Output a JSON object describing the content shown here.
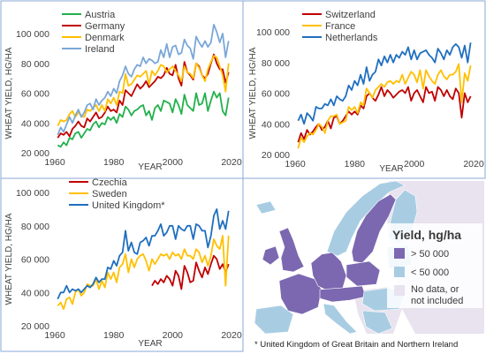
{
  "colors": {
    "Austria": "#22b14c",
    "Germany": "#c00000",
    "Denmark": "#ffc000",
    "Ireland": "#7aa7d8",
    "Switzerland": "#c00000",
    "France": "#ffc000",
    "Netherlands": "#1f6fbf",
    "Czechia": "#c00000",
    "Sweden": "#ffc000",
    "United Kingdom*": "#1f6fbf",
    "map_high": "#7b68b0",
    "map_low": "#a8cde3",
    "map_nodata": "#e8e3ee",
    "panel_border": "#8aa9d6"
  },
  "chart_data": [
    {
      "type": "line",
      "xlabel": "YEAR",
      "ylabel": "WHEAT YIELD, HG/HA",
      "xlim": [
        1960,
        2020
      ],
      "ylim": [
        20000,
        100000
      ],
      "xticks": [
        "1960",
        "1980",
        "2000",
        "2020"
      ],
      "yticks": [
        "20 000",
        "40 000",
        "60 000",
        "80 000",
        "100 000"
      ],
      "legend_position": "top-left",
      "x": [
        1961,
        1962,
        1963,
        1964,
        1965,
        1966,
        1967,
        1968,
        1969,
        1970,
        1971,
        1972,
        1973,
        1974,
        1975,
        1976,
        1977,
        1978,
        1979,
        1980,
        1981,
        1982,
        1983,
        1984,
        1985,
        1986,
        1987,
        1988,
        1989,
        1990,
        1991,
        1992,
        1993,
        1994,
        1995,
        1996,
        1997,
        1998,
        1999,
        2000,
        2001,
        2002,
        2003,
        2004,
        2005,
        2006,
        2007,
        2008,
        2009,
        2010,
        2011,
        2012,
        2013,
        2014,
        2015,
        2016,
        2017,
        2018,
        2019
      ],
      "series": [
        {
          "name": "Austria",
          "values": [
            25000,
            24000,
            27000,
            25000,
            30000,
            29000,
            33000,
            34000,
            30000,
            33000,
            36000,
            35000,
            39000,
            41000,
            37000,
            40000,
            39000,
            44000,
            42000,
            44000,
            40000,
            46000,
            44000,
            51000,
            49000,
            45000,
            48000,
            49000,
            51000,
            52000,
            45000,
            48000,
            42000,
            50000,
            52000,
            48000,
            55000,
            54000,
            53000,
            47000,
            56000,
            52000,
            46000,
            59000,
            52000,
            50000,
            48000,
            60000,
            52000,
            53000,
            60000,
            48000,
            55000,
            61000,
            57000,
            60000,
            48000,
            45000,
            57000
          ]
        },
        {
          "name": "Germany",
          "values": [
            30000,
            33000,
            32000,
            34000,
            31000,
            36000,
            38000,
            41000,
            38000,
            37000,
            43000,
            41000,
            44000,
            47000,
            43000,
            44000,
            47000,
            51000,
            48000,
            49000,
            47000,
            55000,
            52000,
            62000,
            60000,
            58000,
            62000,
            66000,
            63000,
            65000,
            68000,
            64000,
            66000,
            68000,
            71000,
            70000,
            72000,
            77000,
            73000,
            72000,
            79000,
            70000,
            65000,
            81000,
            74000,
            72000,
            69000,
            80000,
            78000,
            72000,
            70000,
            73000,
            80000,
            86000,
            80000,
            76000,
            76000,
            67000,
            74000
          ]
        },
        {
          "name": "Denmark",
          "values": [
            38000,
            42000,
            41000,
            42000,
            46000,
            48000,
            44000,
            47000,
            45000,
            44000,
            49000,
            48000,
            50000,
            52000,
            48000,
            52000,
            48000,
            56000,
            53000,
            57000,
            52000,
            61000,
            60000,
            73000,
            65000,
            66000,
            69000,
            72000,
            71000,
            73000,
            75000,
            66000,
            75000,
            72000,
            75000,
            79000,
            78000,
            74000,
            76000,
            78000,
            75000,
            72000,
            68000,
            78000,
            74000,
            73000,
            70000,
            80000,
            77000,
            72000,
            68000,
            76000,
            81000,
            85000,
            84000,
            78000,
            72000,
            61000,
            80000
          ]
        },
        {
          "name": "Ireland",
          "values": [
            32000,
            37000,
            34000,
            39000,
            44000,
            40000,
            45000,
            49000,
            44000,
            47000,
            52000,
            53000,
            49000,
            56000,
            52000,
            55000,
            57000,
            61000,
            58000,
            63000,
            60000,
            68000,
            72000,
            78000,
            73000,
            71000,
            76000,
            79000,
            78000,
            84000,
            80000,
            83000,
            82000,
            80000,
            81000,
            89000,
            84000,
            93000,
            84000,
            91000,
            92000,
            86000,
            87000,
            96000,
            92000,
            90000,
            83000,
            98000,
            94000,
            91000,
            95000,
            91000,
            94000,
            106000,
            101000,
            94000,
            100000,
            84000,
            95000
          ]
        }
      ]
    },
    {
      "type": "line",
      "xlabel": "YEAR",
      "ylabel": "WHEAT YIELD, HG/HA",
      "xlim": [
        1960,
        2020
      ],
      "ylim": [
        20000,
        100000
      ],
      "xticks": [
        "1960",
        "1980",
        "2000",
        "2020"
      ],
      "yticks": [
        "20 000",
        "40 000",
        "60 000",
        "80 000",
        "100 000"
      ],
      "legend_position": "top-left",
      "x": [
        1961,
        1962,
        1963,
        1964,
        1965,
        1966,
        1967,
        1968,
        1969,
        1970,
        1971,
        1972,
        1973,
        1974,
        1975,
        1976,
        1977,
        1978,
        1979,
        1980,
        1981,
        1982,
        1983,
        1984,
        1985,
        1986,
        1987,
        1988,
        1989,
        1990,
        1991,
        1992,
        1993,
        1994,
        1995,
        1996,
        1997,
        1998,
        1999,
        2000,
        2001,
        2002,
        2003,
        2004,
        2005,
        2006,
        2007,
        2008,
        2009,
        2010,
        2011,
        2012,
        2013,
        2014,
        2015,
        2016,
        2017,
        2018,
        2019
      ],
      "series": [
        {
          "name": "Switzerland",
          "values": [
            28000,
            34000,
            30000,
            36000,
            33000,
            35000,
            38000,
            40000,
            36000,
            38000,
            42000,
            37000,
            44000,
            45000,
            40000,
            42000,
            45000,
            48000,
            46000,
            48000,
            46000,
            52000,
            50000,
            58000,
            60000,
            57000,
            55000,
            59000,
            64000,
            58000,
            62000,
            60000,
            57000,
            59000,
            61000,
            62000,
            60000,
            64000,
            55000,
            60000,
            62000,
            58000,
            54000,
            64000,
            60000,
            61000,
            55000,
            64000,
            62000,
            58000,
            62000,
            58000,
            56000,
            63000,
            60000,
            44000,
            60000,
            54000,
            58000
          ]
        },
        {
          "name": "France",
          "values": [
            24000,
            31000,
            28000,
            32000,
            34000,
            33000,
            36000,
            40000,
            38000,
            34000,
            42000,
            45000,
            45000,
            46000,
            40000,
            41000,
            42000,
            51000,
            49000,
            51000,
            47000,
            54000,
            52000,
            63000,
            60000,
            57000,
            62000,
            64000,
            66000,
            64000,
            67000,
            68000,
            66000,
            68000,
            67000,
            72000,
            66000,
            70000,
            74000,
            72000,
            67000,
            75000,
            63000,
            75000,
            71000,
            68000,
            66000,
            72000,
            75000,
            71000,
            69000,
            72000,
            72000,
            74000,
            79000,
            54000,
            73000,
            68000,
            78000
          ]
        },
        {
          "name": "Netherlands",
          "values": [
            42000,
            46000,
            40000,
            47000,
            45000,
            42000,
            51000,
            50000,
            50000,
            53000,
            52000,
            56000,
            52000,
            58000,
            56000,
            55000,
            58000,
            65000,
            62000,
            68000,
            65000,
            72000,
            66000,
            77000,
            68000,
            72000,
            74000,
            82000,
            78000,
            84000,
            80000,
            85000,
            80000,
            85000,
            83000,
            87000,
            85000,
            90000,
            82000,
            88000,
            82000,
            86000,
            87000,
            88000,
            85000,
            83000,
            80000,
            89000,
            86000,
            82000,
            88000,
            85000,
            90000,
            92000,
            90000,
            83000,
            91000,
            80000,
            93000
          ]
        }
      ]
    },
    {
      "type": "line",
      "xlabel": "YEAR",
      "ylabel": "WHEAT YIELD, HG/HA",
      "xlim": [
        1960,
        2020
      ],
      "ylim": [
        20000,
        100000
      ],
      "xticks": [
        "1960",
        "1980",
        "2000",
        "2020"
      ],
      "yticks": [
        "20 000",
        "40 000",
        "60 000",
        "80 000",
        "100 000"
      ],
      "legend_position": "top-left",
      "x": [
        1961,
        1962,
        1963,
        1964,
        1965,
        1966,
        1967,
        1968,
        1969,
        1970,
        1971,
        1972,
        1973,
        1974,
        1975,
        1976,
        1977,
        1978,
        1979,
        1980,
        1981,
        1982,
        1983,
        1984,
        1985,
        1986,
        1987,
        1988,
        1989,
        1990,
        1991,
        1992,
        1993,
        1994,
        1995,
        1996,
        1997,
        1998,
        1999,
        2000,
        2001,
        2002,
        2003,
        2004,
        2005,
        2006,
        2007,
        2008,
        2009,
        2010,
        2011,
        2012,
        2013,
        2014,
        2015,
        2016,
        2017,
        2018,
        2019
      ],
      "series": [
        {
          "name": "Czechia",
          "values": [
            null,
            null,
            null,
            null,
            null,
            null,
            null,
            null,
            null,
            null,
            null,
            null,
            null,
            null,
            null,
            null,
            null,
            null,
            null,
            null,
            null,
            null,
            null,
            null,
            null,
            null,
            null,
            null,
            null,
            null,
            null,
            null,
            44000,
            47000,
            45000,
            48000,
            46000,
            50000,
            48000,
            44000,
            53000,
            50000,
            42000,
            56000,
            52000,
            46000,
            47000,
            58000,
            53000,
            49000,
            55000,
            51000,
            57000,
            62000,
            60000,
            54000,
            57000,
            52000,
            57000
          ]
        },
        {
          "name": "Sweden",
          "values": [
            32000,
            34000,
            30000,
            36000,
            37000,
            33000,
            40000,
            42000,
            38000,
            40000,
            45000,
            44000,
            44000,
            48000,
            42000,
            47000,
            43000,
            52000,
            48000,
            52000,
            46000,
            55000,
            57000,
            63000,
            52000,
            60000,
            55000,
            60000,
            62000,
            63000,
            59000,
            53000,
            60000,
            57000,
            60000,
            63000,
            62000,
            63000,
            60000,
            64000,
            62000,
            63000,
            60000,
            66000,
            62000,
            62000,
            60000,
            66000,
            64000,
            58000,
            62000,
            56000,
            62000,
            72000,
            68000,
            66000,
            74000,
            44000,
            74000
          ]
        },
        {
          "name": "United Kingdom*",
          "values": [
            36000,
            40000,
            40000,
            44000,
            40000,
            42000,
            41000,
            42000,
            40000,
            42000,
            44000,
            43000,
            45000,
            49000,
            46000,
            48000,
            48000,
            55000,
            54000,
            59000,
            56000,
            62000,
            64000,
            77000,
            65000,
            70000,
            64000,
            63000,
            70000,
            71000,
            73000,
            68000,
            74000,
            74000,
            77000,
            81000,
            74000,
            76000,
            80000,
            80000,
            72000,
            80000,
            78000,
            77000,
            80000,
            80000,
            72000,
            81000,
            80000,
            77000,
            77000,
            67000,
            74000,
            86000,
            90000,
            78000,
            83000,
            78000,
            89000
          ]
        }
      ]
    }
  ],
  "map_legend": {
    "title": "Yield, hg/ha",
    "items": [
      {
        "label": "> 50 000",
        "color": "#7b68b0"
      },
      {
        "label": "< 50 000",
        "color": "#a8cde3"
      },
      {
        "label": "No data, or",
        "label2": "not included",
        "color": "#e8e3ee"
      }
    ]
  },
  "footnote": "* United Kingdom of Great Britain and Northern Ireland"
}
